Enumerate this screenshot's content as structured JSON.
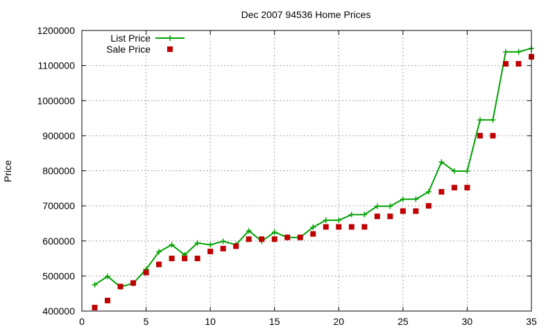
{
  "chart_data": {
    "type": "line",
    "title": "Dec 2007 94536 Home Prices",
    "xlabel": "",
    "ylabel": "Price",
    "xlim": [
      0,
      35
    ],
    "ylim": [
      400000,
      1200000
    ],
    "xticks": [
      0,
      5,
      10,
      15,
      20,
      25,
      30,
      35
    ],
    "yticks": [
      400000,
      500000,
      600000,
      700000,
      800000,
      900000,
      1000000,
      1100000,
      1200000
    ],
    "xtick_labels": [
      "0",
      "5",
      "10",
      "15",
      "20",
      "25",
      "30",
      "35"
    ],
    "ytick_labels": [
      "400000",
      "500000",
      "600000",
      "700000",
      "800000",
      "900000",
      "1000000",
      "1100000",
      "1200000"
    ],
    "grid": true,
    "legend": "top-left",
    "series": [
      {
        "name": "List Price",
        "style": "lines+plus-markers",
        "color": "#00a000",
        "x": [
          1,
          2,
          3,
          4,
          5,
          6,
          7,
          8,
          9,
          10,
          11,
          12,
          13,
          14,
          15,
          16,
          17,
          18,
          19,
          20,
          21,
          22,
          23,
          24,
          25,
          26,
          27,
          28,
          29,
          30,
          31,
          32,
          33,
          34,
          35
        ],
        "y": [
          475000,
          499000,
          469000,
          479000,
          519000,
          569000,
          589000,
          560000,
          594000,
          589000,
          599000,
          589000,
          629000,
          599000,
          625000,
          610000,
          610000,
          639000,
          659000,
          659000,
          675000,
          675000,
          699000,
          699000,
          719000,
          719000,
          740000,
          825000,
          799000,
          799000,
          945000,
          945000,
          1139000,
          1139000,
          1149000
        ]
      },
      {
        "name": "Sale Price",
        "style": "square-markers",
        "color": "#c00000",
        "x": [
          1,
          2,
          3,
          4,
          5,
          6,
          7,
          8,
          9,
          10,
          11,
          12,
          13,
          14,
          15,
          16,
          17,
          18,
          19,
          20,
          21,
          22,
          23,
          24,
          25,
          26,
          27,
          28,
          29,
          30,
          31,
          32,
          33,
          34,
          35
        ],
        "y": [
          410000,
          430000,
          470000,
          480000,
          510000,
          533000,
          550000,
          550000,
          550000,
          570000,
          578000,
          585000,
          605000,
          605000,
          605000,
          610000,
          610000,
          620000,
          640000,
          640000,
          640000,
          640000,
          670000,
          670000,
          685000,
          685000,
          700000,
          740000,
          752000,
          752000,
          900000,
          900000,
          1105000,
          1105000,
          1125000
        ]
      }
    ]
  }
}
